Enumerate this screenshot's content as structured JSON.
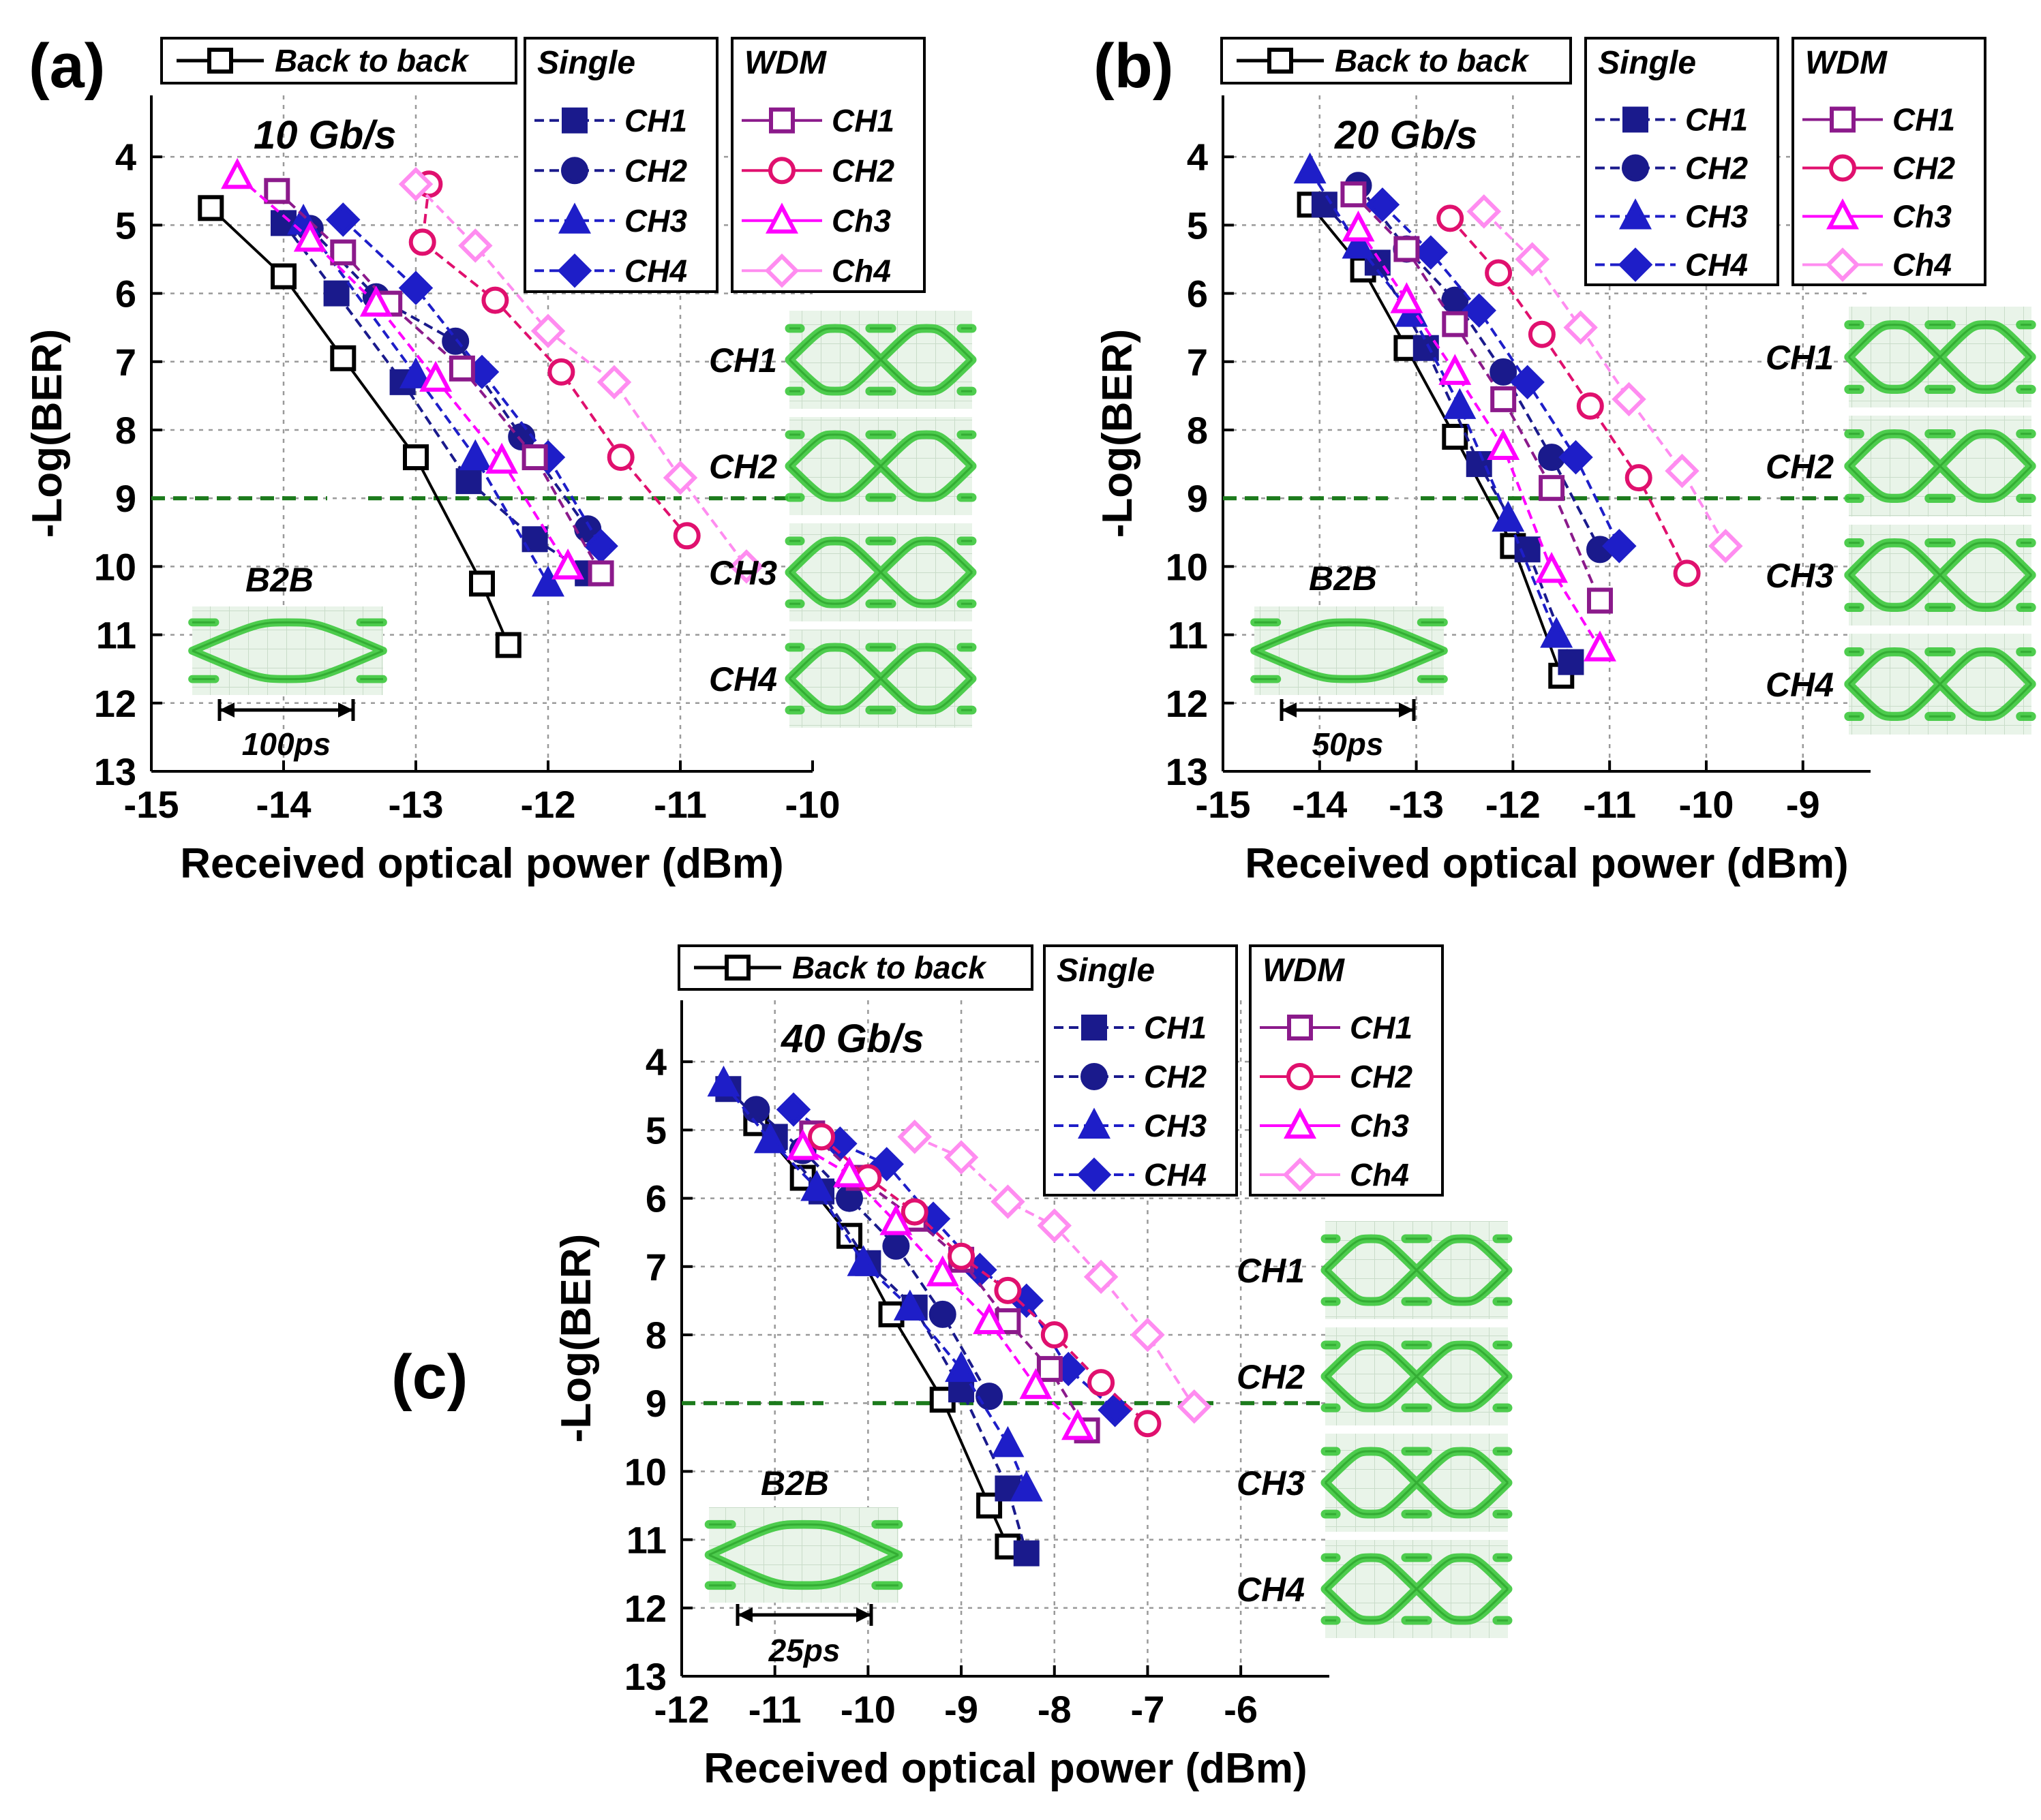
{
  "figure": {
    "eye_labels": [
      "CH1",
      "CH2",
      "CH3",
      "CH4"
    ],
    "b2b_eye_label": "B2B",
    "threshold_log_ber": 9,
    "colors": {
      "b2b": "#000000",
      "single_ch1": "#1a1a8c",
      "single_ch2": "#1a1a8c",
      "single_ch3": "#1e1ec8",
      "single_ch4": "#1e1ec8",
      "wdm_ch1": "#8b1a8b",
      "wdm_ch2": "#e0106e",
      "wdm_ch3": "#ff00ff",
      "wdm_ch4": "#ff8cf0",
      "threshold": "#1b7a1b",
      "eye": "#3cc83c"
    }
  },
  "chart_data": [
    {
      "type": "line",
      "panel": "(a)",
      "rate": "10 Gb/s",
      "xlabel": "Received optical power (dBm)",
      "ylabel": "-Log(BER)",
      "xlim": [
        -15,
        -10
      ],
      "xticks": [
        "-15",
        "-14",
        "-13",
        "-12",
        "-11",
        "-10"
      ],
      "yticks": [
        "4",
        "5",
        "6",
        "7",
        "8",
        "9",
        "10",
        "11",
        "12",
        "13"
      ],
      "eye_scale": "100ps",
      "legend": {
        "b2b": "Back to back",
        "single_title": "Single",
        "single_entries": [
          "CH1",
          "CH2",
          "CH3",
          "CH4"
        ],
        "wdm_title": "WDM",
        "wdm_entries": [
          "CH1",
          "CH2",
          "Ch3",
          "Ch4"
        ]
      },
      "series": [
        {
          "name": "Back to back",
          "group": "b2b",
          "marker": "square-open",
          "points": [
            [
              -14.55,
              4.75
            ],
            [
              -14.0,
              5.75
            ],
            [
              -13.55,
              6.95
            ],
            [
              -13.0,
              8.4
            ],
            [
              -12.5,
              10.25
            ],
            [
              -12.3,
              11.15
            ]
          ]
        },
        {
          "name": "CH1",
          "group": "single",
          "marker": "square",
          "points": [
            [
              -14.0,
              4.97
            ],
            [
              -13.6,
              6.0
            ],
            [
              -13.1,
              7.3
            ],
            [
              -12.6,
              8.75
            ],
            [
              -12.1,
              9.6
            ],
            [
              -11.7,
              10.1
            ]
          ]
        },
        {
          "name": "CH2",
          "group": "single",
          "marker": "circle",
          "points": [
            [
              -13.8,
              5.05
            ],
            [
              -13.3,
              6.05
            ],
            [
              -12.7,
              6.7
            ],
            [
              -12.2,
              8.1
            ],
            [
              -11.7,
              9.45
            ]
          ]
        },
        {
          "name": "CH3",
          "group": "single",
          "marker": "triangle",
          "points": [
            [
              -13.85,
              4.95
            ],
            [
              -13.0,
              7.2
            ],
            [
              -12.55,
              8.4
            ],
            [
              -12.0,
              10.25
            ]
          ]
        },
        {
          "name": "CH4",
          "group": "single",
          "marker": "diamond",
          "points": [
            [
              -13.55,
              4.92
            ],
            [
              -13.0,
              5.92
            ],
            [
              -12.5,
              7.15
            ],
            [
              -12.0,
              8.4
            ],
            [
              -11.6,
              9.7
            ]
          ]
        },
        {
          "name": "CH1",
          "group": "wdm",
          "marker": "square-open",
          "points": [
            [
              -14.05,
              4.5
            ],
            [
              -13.55,
              5.4
            ],
            [
              -13.2,
              6.15
            ],
            [
              -12.65,
              7.1
            ],
            [
              -12.1,
              8.4
            ],
            [
              -11.6,
              10.1
            ]
          ]
        },
        {
          "name": "CH2",
          "group": "wdm",
          "marker": "circle-open",
          "points": [
            [
              -12.9,
              4.4
            ],
            [
              -12.95,
              5.25
            ],
            [
              -12.4,
              6.1
            ],
            [
              -11.9,
              7.15
            ],
            [
              -11.45,
              8.4
            ],
            [
              -10.95,
              9.55
            ]
          ]
        },
        {
          "name": "Ch3",
          "group": "wdm",
          "marker": "triangle-open",
          "points": [
            [
              -14.35,
              4.28
            ],
            [
              -13.8,
              5.2
            ],
            [
              -13.3,
              6.15
            ],
            [
              -12.85,
              7.25
            ],
            [
              -12.35,
              8.45
            ],
            [
              -11.85,
              10.0
            ]
          ]
        },
        {
          "name": "Ch4",
          "group": "wdm",
          "marker": "diamond-open",
          "points": [
            [
              -13.0,
              4.4
            ],
            [
              -12.55,
              5.3
            ],
            [
              -12.0,
              6.55
            ],
            [
              -11.5,
              7.3
            ],
            [
              -11.0,
              8.7
            ],
            [
              -10.5,
              10.0
            ]
          ]
        }
      ]
    },
    {
      "type": "line",
      "panel": "(b)",
      "rate": "20 Gb/s",
      "xlabel": "Received optical power (dBm)",
      "ylabel": "-Log(BER)",
      "xlim": [
        -15,
        -8.3
      ],
      "xticks": [
        "-15",
        "-14",
        "-13",
        "-12",
        "-11",
        "-10",
        "-9"
      ],
      "yticks": [
        "4",
        "5",
        "6",
        "7",
        "8",
        "9",
        "10",
        "11",
        "12",
        "13"
      ],
      "eye_scale": "50ps",
      "legend": {
        "b2b": "Back to back",
        "single_title": "Single",
        "single_entries": [
          "CH1",
          "CH2",
          "CH3",
          "CH4"
        ],
        "wdm_title": "WDM",
        "wdm_entries": [
          "CH1",
          "CH2",
          "Ch3",
          "Ch4"
        ]
      },
      "series": [
        {
          "name": "Back to back",
          "group": "b2b",
          "marker": "square-open",
          "points": [
            [
              -14.1,
              4.7
            ],
            [
              -13.55,
              5.65
            ],
            [
              -13.1,
              6.8
            ],
            [
              -12.6,
              8.1
            ],
            [
              -12.0,
              9.7
            ],
            [
              -11.5,
              11.6
            ]
          ]
        },
        {
          "name": "CH1",
          "group": "single",
          "marker": "square",
          "points": [
            [
              -13.95,
              4.7
            ],
            [
              -13.4,
              5.55
            ],
            [
              -12.9,
              6.8
            ],
            [
              -12.35,
              8.5
            ],
            [
              -11.85,
              9.75
            ],
            [
              -11.4,
              11.4
            ]
          ]
        },
        {
          "name": "CH2",
          "group": "single",
          "marker": "circle",
          "points": [
            [
              -13.6,
              4.42
            ],
            [
              -13.1,
              5.35
            ],
            [
              -12.6,
              6.1
            ],
            [
              -12.1,
              7.15
            ],
            [
              -11.6,
              8.4
            ],
            [
              -11.1,
              9.75
            ]
          ]
        },
        {
          "name": "CH3",
          "group": "single",
          "marker": "triangle",
          "points": [
            [
              -14.1,
              4.2
            ],
            [
              -13.6,
              5.3
            ],
            [
              -13.05,
              6.3
            ],
            [
              -12.55,
              7.65
            ],
            [
              -12.05,
              9.3
            ],
            [
              -11.55,
              11.0
            ]
          ]
        },
        {
          "name": "CH4",
          "group": "single",
          "marker": "diamond",
          "points": [
            [
              -13.35,
              4.7
            ],
            [
              -12.85,
              5.4
            ],
            [
              -12.35,
              6.25
            ],
            [
              -11.85,
              7.3
            ],
            [
              -11.35,
              8.4
            ],
            [
              -10.9,
              9.7
            ]
          ]
        },
        {
          "name": "CH1",
          "group": "wdm",
          "marker": "square-open",
          "points": [
            [
              -13.65,
              4.55
            ],
            [
              -13.1,
              5.35
            ],
            [
              -12.6,
              6.45
            ],
            [
              -12.1,
              7.55
            ],
            [
              -11.6,
              8.85
            ],
            [
              -11.1,
              10.5
            ]
          ]
        },
        {
          "name": "CH2",
          "group": "wdm",
          "marker": "circle-open",
          "points": [
            [
              -12.65,
              4.9
            ],
            [
              -12.15,
              5.7
            ],
            [
              -11.7,
              6.6
            ],
            [
              -11.2,
              7.65
            ],
            [
              -10.7,
              8.7
            ],
            [
              -10.2,
              10.1
            ]
          ]
        },
        {
          "name": "Ch3",
          "group": "wdm",
          "marker": "triangle-open",
          "points": [
            [
              -13.6,
              5.05
            ],
            [
              -13.1,
              6.1
            ],
            [
              -12.6,
              7.15
            ],
            [
              -12.1,
              8.25
            ],
            [
              -11.6,
              10.05
            ],
            [
              -11.1,
              11.2
            ]
          ]
        },
        {
          "name": "Ch4",
          "group": "wdm",
          "marker": "diamond-open",
          "points": [
            [
              -12.3,
              4.8
            ],
            [
              -11.8,
              5.5
            ],
            [
              -11.3,
              6.5
            ],
            [
              -10.8,
              7.55
            ],
            [
              -10.25,
              8.6
            ],
            [
              -9.8,
              9.7
            ]
          ]
        }
      ]
    },
    {
      "type": "line",
      "panel": "(c)",
      "rate": "40 Gb/s",
      "xlabel": "Received optical power (dBm)",
      "ylabel": "-Log(BER)",
      "xlim": [
        -12,
        -5.05
      ],
      "xticks": [
        "-12",
        "-11",
        "-10",
        "-9",
        "-8",
        "-7",
        "-6"
      ],
      "yticks": [
        "4",
        "5",
        "6",
        "7",
        "8",
        "9",
        "10",
        "11",
        "12",
        "13"
      ],
      "eye_scale": "25ps",
      "legend": {
        "b2b": "Back to back",
        "single_title": "Single",
        "single_entries": [
          "CH1",
          "CH2",
          "CH3",
          "CH4"
        ],
        "wdm_title": "WDM",
        "wdm_entries": [
          "CH1",
          "CH2",
          "Ch3",
          "Ch4"
        ]
      },
      "series": [
        {
          "name": "Back to back",
          "group": "b2b",
          "marker": "square-open",
          "points": [
            [
              -11.2,
              4.9
            ],
            [
              -10.7,
              5.7
            ],
            [
              -10.2,
              6.55
            ],
            [
              -9.75,
              7.7
            ],
            [
              -9.2,
              8.95
            ],
            [
              -8.7,
              10.5
            ],
            [
              -8.5,
              11.1
            ]
          ]
        },
        {
          "name": "CH1",
          "group": "single",
          "marker": "square",
          "points": [
            [
              -11.5,
              4.4
            ],
            [
              -11.0,
              5.1
            ],
            [
              -10.5,
              5.9
            ],
            [
              -10.0,
              6.95
            ],
            [
              -9.5,
              7.6
            ],
            [
              -9.0,
              8.8
            ],
            [
              -8.5,
              10.25
            ],
            [
              -8.3,
              11.2
            ]
          ]
        },
        {
          "name": "CH2",
          "group": "single",
          "marker": "circle",
          "points": [
            [
              -11.2,
              4.7
            ],
            [
              -10.7,
              5.3
            ],
            [
              -10.2,
              6.0
            ],
            [
              -9.7,
              6.7
            ],
            [
              -9.2,
              7.7
            ],
            [
              -8.7,
              8.9
            ]
          ]
        },
        {
          "name": "CH3",
          "group": "single",
          "marker": "triangle",
          "points": [
            [
              -11.55,
              4.32
            ],
            [
              -11.05,
              5.15
            ],
            [
              -10.55,
              5.85
            ],
            [
              -10.05,
              6.95
            ],
            [
              -9.55,
              7.6
            ],
            [
              -9.0,
              8.5
            ],
            [
              -8.5,
              9.6
            ],
            [
              -8.3,
              10.25
            ]
          ]
        },
        {
          "name": "CH4",
          "group": "single",
          "marker": "diamond",
          "points": [
            [
              -10.8,
              4.7
            ],
            [
              -10.3,
              5.2
            ],
            [
              -9.8,
              5.5
            ],
            [
              -9.3,
              6.3
            ],
            [
              -8.8,
              7.05
            ],
            [
              -8.3,
              7.5
            ],
            [
              -7.85,
              8.5
            ],
            [
              -7.35,
              9.1
            ]
          ]
        },
        {
          "name": "CH1",
          "group": "wdm",
          "marker": "square-open",
          "points": [
            [
              -10.6,
              5.05
            ],
            [
              -10.1,
              5.7
            ],
            [
              -9.5,
              6.3
            ],
            [
              -9.0,
              6.9
            ],
            [
              -8.5,
              7.8
            ],
            [
              -8.05,
              8.5
            ],
            [
              -7.65,
              9.4
            ]
          ]
        },
        {
          "name": "CH2",
          "group": "wdm",
          "marker": "circle-open",
          "points": [
            [
              -10.5,
              5.1
            ],
            [
              -10.0,
              5.7
            ],
            [
              -9.5,
              6.2
            ],
            [
              -9.0,
              6.85
            ],
            [
              -8.5,
              7.35
            ],
            [
              -8.0,
              8.0
            ],
            [
              -7.5,
              8.7
            ],
            [
              -7.0,
              9.3
            ]
          ]
        },
        {
          "name": "Ch3",
          "group": "wdm",
          "marker": "triangle-open",
          "points": [
            [
              -10.7,
              5.25
            ],
            [
              -10.2,
              5.65
            ],
            [
              -9.7,
              6.35
            ],
            [
              -9.2,
              7.1
            ],
            [
              -8.7,
              7.8
            ],
            [
              -8.2,
              8.75
            ],
            [
              -7.75,
              9.35
            ]
          ]
        },
        {
          "name": "Ch4",
          "group": "wdm",
          "marker": "diamond-open",
          "points": [
            [
              -9.5,
              5.1
            ],
            [
              -9.0,
              5.4
            ],
            [
              -8.5,
              6.05
            ],
            [
              -8.0,
              6.4
            ],
            [
              -7.5,
              7.15
            ],
            [
              -7.0,
              8.0
            ],
            [
              -6.5,
              9.05
            ]
          ]
        }
      ]
    }
  ]
}
